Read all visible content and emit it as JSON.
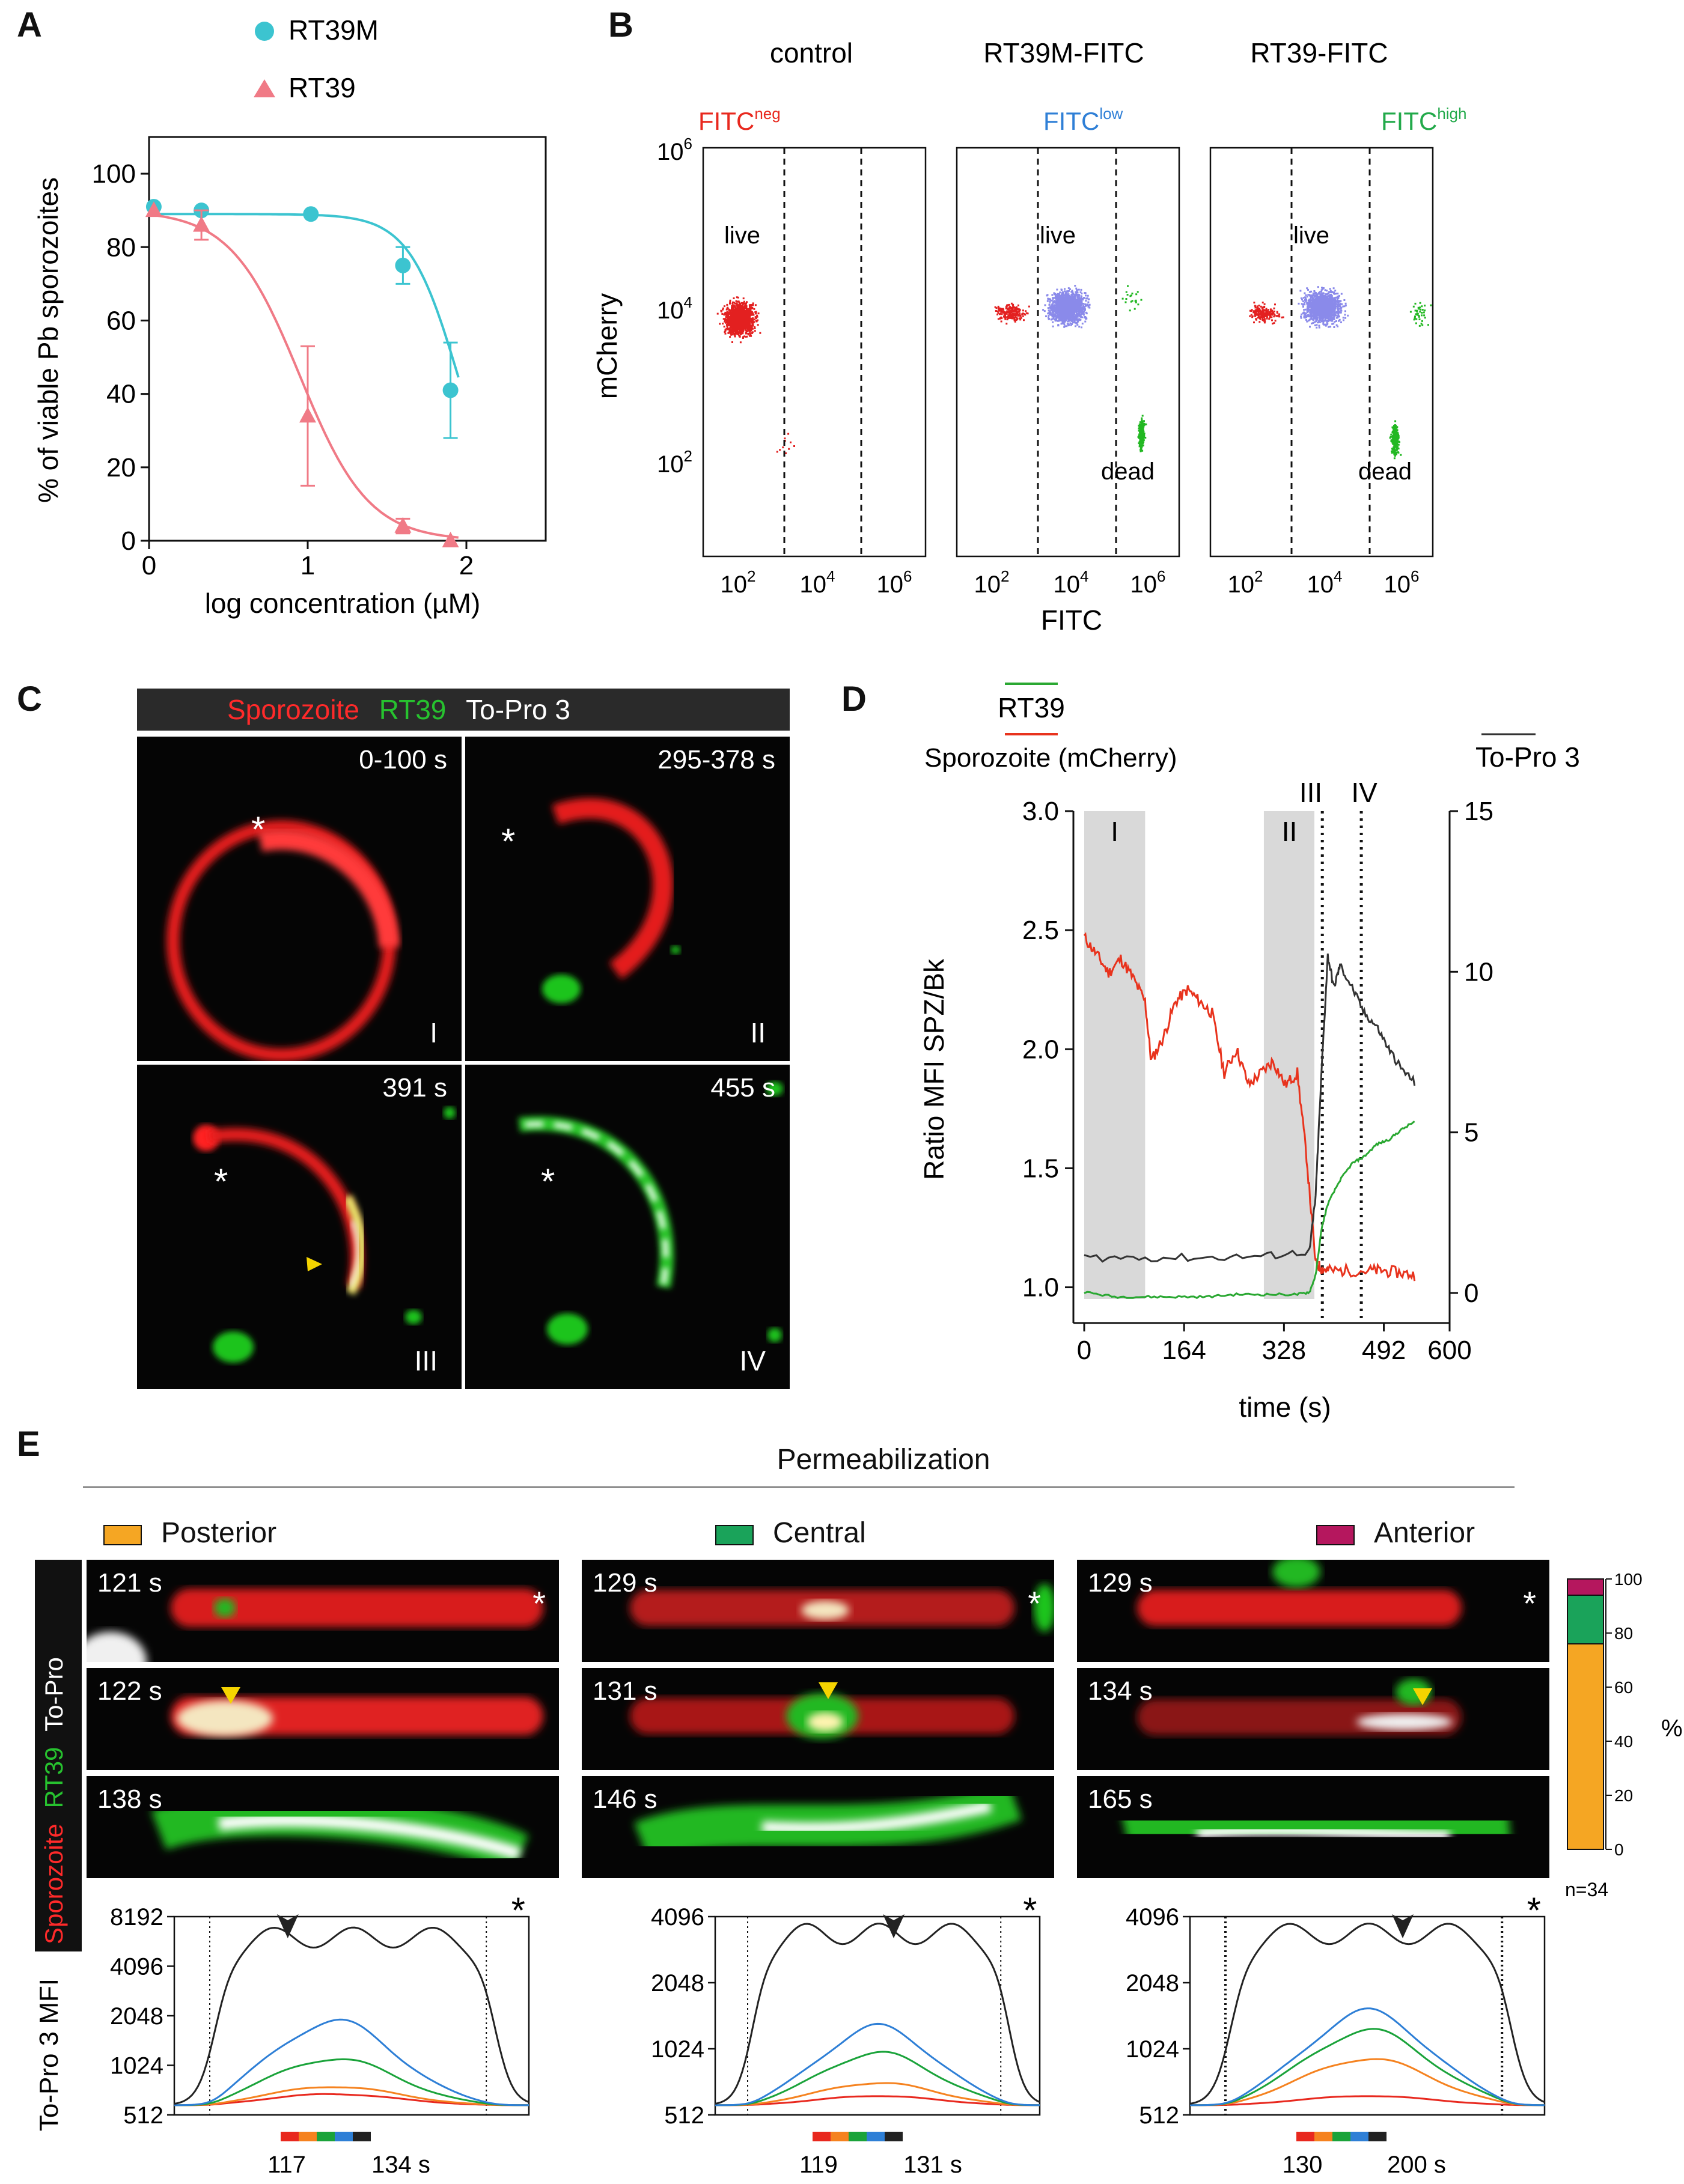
{
  "panel_labels": {
    "A": "A",
    "B": "B",
    "C": "C",
    "D": "D",
    "E": "E"
  },
  "panelA": {
    "legend": [
      "RT39M",
      "RT39"
    ],
    "ylabel": "% of viable Pb sporozoites",
    "xlabel": "log concentration  (µM)",
    "xticks": [
      "0",
      "1",
      "2"
    ],
    "yticks": [
      "0",
      "20",
      "40",
      "60",
      "80",
      "100"
    ]
  },
  "panelB": {
    "headers": [
      "control",
      "RT39M-FITC",
      "RT39-FITC"
    ],
    "gate_base": "FITC",
    "gate_sups": [
      "neg",
      "low",
      "high"
    ],
    "ylabel": "mCherry",
    "xlabel": "FITC",
    "yticks": [
      "10",
      "10",
      "10"
    ],
    "ytick_exps": [
      "6",
      "4",
      "2"
    ],
    "xticks": [
      "10",
      "10",
      "10"
    ],
    "xtick_exps": [
      "2",
      "4",
      "6"
    ],
    "live": "live",
    "dead": "dead"
  },
  "panelC": {
    "header": {
      "sporozoite": "Sporozoite",
      "rt39": "RT39",
      "topro": "To-Pro 3"
    },
    "frames": [
      {
        "time": "0-100 s",
        "roman": "I"
      },
      {
        "time": "295-378 s",
        "roman": "II"
      },
      {
        "time": "391 s",
        "roman": "III"
      },
      {
        "time": "455 s",
        "roman": "IV"
      }
    ],
    "star": "*"
  },
  "panelD": {
    "legend_rt39": "RT39",
    "legend_spz": "Sporozoite (mCherry)",
    "legend_topro": "To-Pro 3",
    "ylabel": "Ratio MFI SPZ/Bk",
    "xlabel": "time (s)",
    "xticks": [
      "0",
      "164",
      "328",
      "492",
      "600"
    ],
    "yticks_left": [
      "1.0",
      "1.5",
      "2.0",
      "2.5",
      "3.0"
    ],
    "yticks_right": [
      "0",
      "5",
      "10",
      "15"
    ],
    "regions": [
      "I",
      "II",
      "III",
      "IV"
    ]
  },
  "panelE": {
    "title": "Permeabilization",
    "legend": [
      {
        "label": "Posterior",
        "color": "#f5a623"
      },
      {
        "label": "Central",
        "color": "#1aa35a"
      },
      {
        "label": "Anterior",
        "color": "#b5175e"
      }
    ],
    "side_label": {
      "sporozoite": "Sporozoite",
      "rt39": "RT39",
      "topro": "To-Pro"
    },
    "times": [
      [
        "121 s",
        "122 s",
        "138 s"
      ],
      [
        "129 s",
        "131 s",
        "146 s"
      ],
      [
        "129 s",
        "134 s",
        "165 s"
      ]
    ],
    "bar_yticks": [
      "0",
      "20",
      "40",
      "60",
      "80",
      "100"
    ],
    "bar_unit": "%",
    "bar_n": "n=34",
    "bar_values": {
      "posterior": 76,
      "central": 18,
      "anterior": 6
    },
    "profile_ylabel": "To-Pro 3 MFI",
    "profiles": [
      {
        "yticks": [
          "512",
          "1024",
          "2048",
          "4096",
          "8192"
        ],
        "range": [
          "117",
          "134 s"
        ]
      },
      {
        "yticks": [
          "512",
          "1024",
          "2048",
          "4096"
        ],
        "range": [
          "119",
          "131 s"
        ]
      },
      {
        "yticks": [
          "512",
          "1024",
          "2048",
          "4096"
        ],
        "range": [
          "130",
          "200 s"
        ]
      }
    ],
    "star": "*"
  },
  "chart_data": [
    {
      "type": "scatter",
      "title": "",
      "xlabel": "log concentration  (µM)",
      "ylabel": "% of viable Pb sporozoites",
      "xlim": [
        0,
        2.5
      ],
      "ylim": [
        0,
        110
      ],
      "series": [
        {
          "name": "RT39M",
          "color": "#3cc4d0",
          "x": [
            0.03,
            0.33,
            1.02,
            1.6,
            1.9
          ],
          "y": [
            91,
            90,
            89,
            75,
            41
          ],
          "err": [
            0,
            0,
            0,
            5,
            13
          ]
        },
        {
          "name": "RT39",
          "color": "#f07a86",
          "x": [
            0.03,
            0.33,
            1.0,
            1.6,
            1.9
          ],
          "y": [
            90,
            86,
            34,
            4,
            0
          ],
          "err": [
            0,
            4,
            19,
            2,
            0
          ]
        }
      ]
    },
    {
      "type": "line",
      "title": "",
      "xlabel": "time (s)",
      "ylabel": "Ratio MFI SPZ/Bk",
      "ylabel_right": "To-Pro 3",
      "xlim": [
        0,
        600
      ],
      "ylim": [
        0.85,
        3.0
      ],
      "ylim_right": [
        0,
        15
      ],
      "series": [
        {
          "name": "Sporozoite (mCherry)",
          "color": "#e8331d",
          "axis": "left",
          "x": [
            0,
            20,
            40,
            60,
            80,
            100,
            110,
            130,
            150,
            170,
            190,
            210,
            230,
            250,
            270,
            290,
            310,
            330,
            350,
            365,
            380,
            390,
            400,
            430,
            470,
            490,
            520,
            545
          ],
          "y": [
            2.47,
            2.4,
            2.32,
            2.38,
            2.3,
            2.2,
            1.95,
            2.05,
            2.2,
            2.25,
            2.2,
            2.15,
            1.9,
            2.0,
            1.85,
            1.9,
            1.95,
            1.85,
            1.9,
            1.55,
            1.1,
            1.08,
            1.07,
            1.07,
            1.07,
            1.07,
            1.06,
            1.05
          ]
        },
        {
          "name": "RT39",
          "color": "#2aa832",
          "axis": "left",
          "x": [
            0,
            50,
            100,
            150,
            200,
            250,
            300,
            350,
            370,
            380,
            390,
            400,
            420,
            440,
            460,
            480,
            500,
            520,
            545
          ],
          "y": [
            0.98,
            0.96,
            0.96,
            0.96,
            0.96,
            0.97,
            0.97,
            0.97,
            0.98,
            1.05,
            1.25,
            1.35,
            1.45,
            1.52,
            1.55,
            1.6,
            1.62,
            1.66,
            1.7
          ]
        },
        {
          "name": "To-Pro 3",
          "color": "#333333",
          "axis": "right",
          "x": [
            0,
            100,
            200,
            300,
            370,
            380,
            390,
            400,
            410,
            420,
            440,
            460,
            480,
            500,
            520,
            545
          ],
          "y": [
            1.1,
            1.1,
            1.1,
            1.15,
            1.3,
            3.0,
            7.0,
            10.5,
            9.5,
            10.2,
            9.5,
            8.7,
            8.3,
            7.6,
            7.0,
            6.5
          ]
        }
      ]
    },
    {
      "type": "bar",
      "title": "",
      "xlabel": "",
      "ylabel": "%",
      "ylim": [
        0,
        100
      ],
      "categories": [
        "n=34"
      ],
      "series": [
        {
          "name": "Posterior",
          "values": [
            76
          ]
        },
        {
          "name": "Central",
          "values": [
            18
          ]
        },
        {
          "name": "Anterior",
          "values": [
            6
          ]
        }
      ]
    }
  ]
}
